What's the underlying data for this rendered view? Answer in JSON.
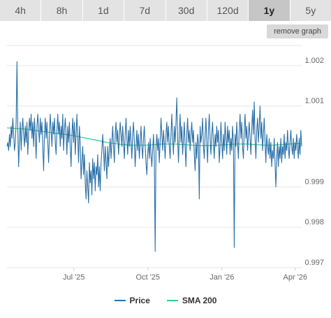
{
  "tabs": [
    {
      "label": "4h",
      "active": false
    },
    {
      "label": "8h",
      "active": false
    },
    {
      "label": "1d",
      "active": false
    },
    {
      "label": "7d",
      "active": false
    },
    {
      "label": "30d",
      "active": false
    },
    {
      "label": "120d",
      "active": false
    },
    {
      "label": "1y",
      "active": true
    },
    {
      "label": "5y",
      "active": false
    }
  ],
  "remove_graph_label": "remove graph",
  "colors": {
    "price": "#2a6fa8",
    "sma": "#2ecc8f",
    "grid": "#e6e6e6",
    "active_tab": "#c6c6c6",
    "tab": "#e3e3e3"
  },
  "chart_data": {
    "type": "line",
    "grid": true,
    "legend_position": "bottom-center",
    "ylim": [
      0.997,
      1.0025
    ],
    "y_ticks": [
      "1.002",
      "1.001",
      "0.999",
      "0.998",
      "0.997"
    ],
    "y_tick_values": [
      1.002,
      1.001,
      0.999,
      0.998,
      0.997
    ],
    "x_ticks": [
      "Jul '25",
      "Oct '25",
      "Jan '26",
      "Apr '26"
    ],
    "x_tick_days": [
      83,
      175,
      267,
      358
    ],
    "x_range_days": [
      0,
      366
    ],
    "series": [
      {
        "name": "Price",
        "values": [
          1.0,
          1.0001,
          0.9999,
          1.0003,
          1.0,
          1.0005,
          1.0002,
          1.0007,
          1.0003,
          0.9999,
          1.0001,
          1.0006,
          1.0021,
          1.0004,
          0.9995,
          1.0002,
          1.0006,
          0.9999,
          1.0004,
          1.0007,
          1.0003,
          1.0,
          1.0005,
          1.0001,
          1.0006,
          0.9998,
          1.0003,
          1.0007,
          1.0004,
          1.0008,
          1.0002,
          1.0006,
          1.0,
          1.0007,
          1.0003,
          0.9997,
          1.0005,
          1.0008,
          1.0004,
          1.0001,
          1.0007,
          1.0003,
          1.0006,
          1.0,
          0.9994,
          1.0003,
          1.0007,
          1.0002,
          1.0006,
          1.0001,
          0.9996,
          1.0003,
          1.0008,
          1.0004,
          1.0,
          1.0006,
          1.0003,
          1.0007,
          1.0001,
          0.9998,
          1.0004,
          1.0008,
          1.0003,
          1.0006,
          1.0,
          1.0005,
          1.0002,
          1.0008,
          0.9999,
          1.0004,
          1.0007,
          1.0003,
          0.9998,
          1.0005,
          1.0001,
          1.0006,
          1.0,
          0.9995,
          1.0003,
          1.0007,
          1.0001,
          1.0006,
          0.9998,
          1.0003,
          1.0008,
          1.0002,
          0.9996,
          1.0005,
          1.0001,
          0.9992,
          0.9996,
          1.0,
          0.9993,
          0.9998,
          0.9991,
          0.9987,
          0.9994,
          0.999,
          0.9986,
          0.9996,
          0.9991,
          0.9994,
          0.9988,
          0.9997,
          0.9992,
          0.9996,
          0.9989,
          0.9995,
          0.9993,
          0.9998,
          0.999,
          0.9995,
          0.9989,
          0.9996,
          0.9999,
          1.0003,
          0.9999,
          0.9994,
          1.0,
          0.9996,
          0.9992,
          1.0,
          0.9995,
          0.9999,
          1.0002,
          0.9997,
          1.0001,
          1.0005,
          1.0,
          0.9996,
          1.0003,
          1.0006,
          1.0001,
          1.0004,
          0.9998,
          1.0002,
          1.0006,
          1.0003,
          1.0,
          1.0005,
          1.0001,
          0.9997,
          1.0003,
          1.0007,
          1.0002,
          0.9998,
          1.0004,
          1.0,
          1.0005,
          1.0001,
          0.9997,
          1.0003,
          1.0006,
          1.0001,
          0.9995,
          1.0,
          1.0004,
          0.9999,
          1.0003,
          0.9997,
          1.0001,
          1.0005,
          1.0,
          0.9997,
          1.0002,
          1.0005,
          1.0,
          0.9996,
          0.9993,
          0.9998,
          1.0001,
          0.9997,
          1.0002,
          0.9998,
          0.9995,
          0.9999,
          1.0003,
          0.9997,
          0.9974,
          1.0,
          1.0003,
          0.9999,
          1.0002,
          0.9996,
          1.0001,
          1.0007,
          1.0003,
          0.9999,
          1.0004,
          1.0001,
          0.9997,
          1.0003,
          1.0006,
          1.0001,
          1.0005,
          1.0,
          0.9997,
          1.0003,
          1.0008,
          1.0002,
          0.9998,
          1.0005,
          1.0001,
          1.0006,
          1.0012,
          1.0002,
          0.9996,
          1.0003,
          1.0008,
          1.0001,
          1.0005,
          0.9998,
          1.0002,
          1.0006,
          1.0,
          0.9995,
          1.0003,
          1.0007,
          1.0001,
          1.0004,
          0.9999,
          1.0003,
          1.0006,
          1.0001,
          1.0004,
          0.9998,
          0.9994,
          1.0001,
          0.9997,
          1.0003,
          1.0001,
          0.9987,
          1.0005,
          1.0001,
          1.0003,
          1.0007,
          1.0,
          0.9997,
          1.0003,
          1.0007,
          1.0001,
          0.9996,
          1.0004,
          1.0008,
          1.0002,
          0.9998,
          1.0003,
          1.0006,
          1.0001,
          0.9997,
          1.0003,
          1.0,
          1.0005,
          1.0001,
          1.0004,
          0.9996,
          1.0,
          1.0006,
          1.0001,
          0.9997,
          1.0003,
          0.9999,
          1.0006,
          1.0002,
          0.9998,
          1.0005,
          1.0001,
          1.0004,
          0.9998,
          1.0002,
          0.9999,
          1.0005,
          1.0001,
          0.9975,
          1.0003,
          1.0,
          1.0006,
          1.0001,
          0.9997,
          1.0004,
          1.0008,
          1.0002,
          1.0006,
          1.0,
          0.9997,
          1.0004,
          1.0008,
          1.0002,
          1.0005,
          0.9999,
          1.0003,
          1.0006,
          1.0002,
          0.9998,
          1.0004,
          1.0009,
          1.0003,
          1.0011,
          1.0002,
          0.9997,
          1.0004,
          1.0007,
          1.0001,
          1.0005,
          1.001,
          1.0002,
          1.0006,
          0.9999,
          1.0003,
          1.0007,
          1.0001,
          0.9996,
          1.0003,
          1.0,
          0.9998,
          1.0002,
          0.9997,
          1.0001,
          0.9995,
          0.9999,
          0.9997,
          1.0002,
          0.9996,
          0.999,
          0.9997,
          1.0001,
          0.9995,
          1.0,
          0.9997,
          1.0002,
          0.9996,
          1.0,
          0.9998,
          1.0003,
          0.9997,
          1.0001,
          0.9999,
          1.0004,
          1.0,
          0.9997,
          1.0001,
          1.0004,
          1.0,
          0.9998,
          1.0002,
          0.9997,
          1.0001,
          0.9999,
          1.0003,
          1.0,
          0.9997,
          1.0002,
          0.9998,
          1.0004,
          1.0
        ]
      },
      {
        "name": "SMA 200",
        "values": [
          1.00046,
          1.00045,
          1.00044,
          1.00043,
          1.00041,
          1.00039,
          1.00037,
          1.00035,
          1.00033,
          1.00031,
          1.00029,
          1.00027,
          1.00024,
          1.00021,
          1.00018,
          1.00015,
          1.00012,
          1.00009,
          1.00007,
          1.00005,
          1.00004,
          1.00003,
          1.00003,
          1.00003,
          1.00004,
          1.00005,
          1.00006,
          1.00006,
          1.00006,
          1.00005,
          1.00004,
          1.00003,
          1.00002,
          1.00002,
          1.00002,
          1.00003,
          1.00004,
          1.00005,
          1.00006,
          1.00006,
          1.00006,
          1.00005,
          1.00004,
          1.00003,
          1.00003,
          1.00004,
          1.00005,
          1.00006,
          1.00007,
          1.00007
        ]
      }
    ]
  }
}
